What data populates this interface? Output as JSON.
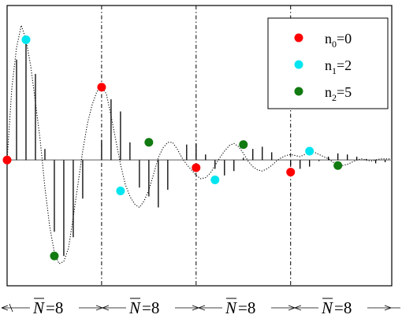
{
  "chart_data": {
    "type": "scatter",
    "description_free": true,
    "grid": false,
    "legend_position": "top-right",
    "xlim": [
      0,
      40.7
    ],
    "ylim": [
      -1.14,
      1.4
    ],
    "segment_length": 8,
    "segment_dividers_at": [
      10,
      20,
      30
    ],
    "legend": [
      {
        "base": "n",
        "sub": "0",
        "rest": "=0",
        "color": "#ff0000"
      },
      {
        "base": "n",
        "sub": "1",
        "rest": "=2",
        "color": "#00e5f0"
      },
      {
        "base": "n",
        "sub": "2",
        "rest": "=5",
        "color": "#117a11"
      }
    ],
    "segment_labels": [
      {
        "pre": "N",
        "post": "=8"
      },
      {
        "pre": "N",
        "post": "=8"
      },
      {
        "pre": "N",
        "post": "=8"
      },
      {
        "pre": "N",
        "post": "=8"
      }
    ],
    "stems": {
      "x": [
        0,
        1,
        2,
        3,
        4,
        5,
        6,
        7,
        8,
        9,
        10,
        11,
        12,
        13,
        14,
        15,
        16,
        17,
        18,
        19,
        20,
        21,
        22,
        23,
        24,
        25,
        26,
        27,
        28,
        29,
        30,
        31,
        32,
        33,
        34,
        35,
        36,
        37,
        38,
        39,
        40
      ],
      "y": [
        0.0,
        0.91,
        1.09,
        0.78,
        0.1,
        -0.65,
        -0.87,
        -0.7,
        -0.35,
        0.0,
        0.18,
        0.55,
        0.44,
        0.16,
        -0.25,
        -0.33,
        -0.43,
        -0.27,
        0.0,
        0.14,
        0.15,
        0.05,
        -0.08,
        -0.14,
        -0.1,
        0.02,
        0.1,
        0.12,
        0.07,
        0.0,
        -0.05,
        -0.08,
        -0.06,
        -0.01,
        0.03,
        0.06,
        0.05,
        0.03,
        0.01,
        -0.03,
        -0.02
      ]
    },
    "envelope": {
      "x": [
        0,
        0.5,
        1,
        1.5,
        2,
        2.5,
        3,
        3.5,
        4,
        4.5,
        5,
        5.5,
        6,
        6.5,
        7,
        7.5,
        8,
        8.5,
        9,
        9.5,
        10,
        10.5,
        11,
        11.5,
        12,
        12.5,
        13,
        13.5,
        14,
        14.5,
        15,
        15.5,
        16,
        16.5,
        17,
        17.5,
        18,
        18.5,
        19,
        19.5,
        20,
        20.5,
        21,
        21.5,
        22,
        22.5,
        23,
        23.5,
        24,
        24.5,
        25,
        25.5,
        26,
        26.5,
        27,
        27.5,
        28,
        28.5,
        29,
        29.5,
        30,
        30.5,
        31,
        31.5,
        32,
        32.5,
        33,
        33.5,
        34,
        34.5,
        35,
        35.5,
        36,
        36.5,
        37,
        37.5,
        38,
        38.5,
        39,
        39.5,
        40,
        40.5
      ],
      "y": [
        0.0,
        0.65,
        1.02,
        1.22,
        1.09,
        0.85,
        0.52,
        0.18,
        -0.25,
        -0.6,
        -0.84,
        -0.94,
        -0.92,
        -0.8,
        -0.52,
        -0.22,
        0.08,
        0.33,
        0.5,
        0.62,
        0.66,
        0.6,
        0.4,
        0.18,
        -0.04,
        -0.22,
        -0.33,
        -0.4,
        -0.43,
        -0.37,
        -0.27,
        -0.13,
        0.02,
        0.11,
        0.16,
        0.16,
        0.1,
        0.02,
        -0.04,
        -0.09,
        -0.14,
        -0.17,
        -0.16,
        -0.12,
        -0.05,
        0.02,
        0.08,
        0.13,
        0.15,
        0.12,
        0.06,
        -0.01,
        -0.06,
        -0.09,
        -0.1,
        -0.08,
        -0.05,
        -0.01,
        0.02,
        0.04,
        0.05,
        0.04,
        0.03,
        0.05,
        0.08,
        0.07,
        0.05,
        0.03,
        0.01,
        -0.02,
        -0.04,
        -0.05,
        -0.04,
        -0.02,
        0.0,
        0.01,
        0.0,
        -0.01,
        0.0,
        0.01,
        0.01,
        0.01
      ]
    },
    "series": [
      {
        "points": [
          [
            0,
            0.0
          ],
          [
            10,
            0.66
          ],
          [
            20,
            -0.07
          ],
          [
            30,
            -0.11
          ]
        ],
        "color": "#ff0000"
      },
      {
        "points": [
          [
            2,
            1.09
          ],
          [
            12,
            -0.28
          ],
          [
            22,
            -0.18
          ],
          [
            32,
            0.08
          ]
        ],
        "color": "#00e5f0"
      },
      {
        "points": [
          [
            5,
            -0.87
          ],
          [
            15,
            0.16
          ],
          [
            25,
            0.14
          ],
          [
            35,
            -0.05
          ]
        ],
        "color": "#117a11"
      }
    ]
  }
}
